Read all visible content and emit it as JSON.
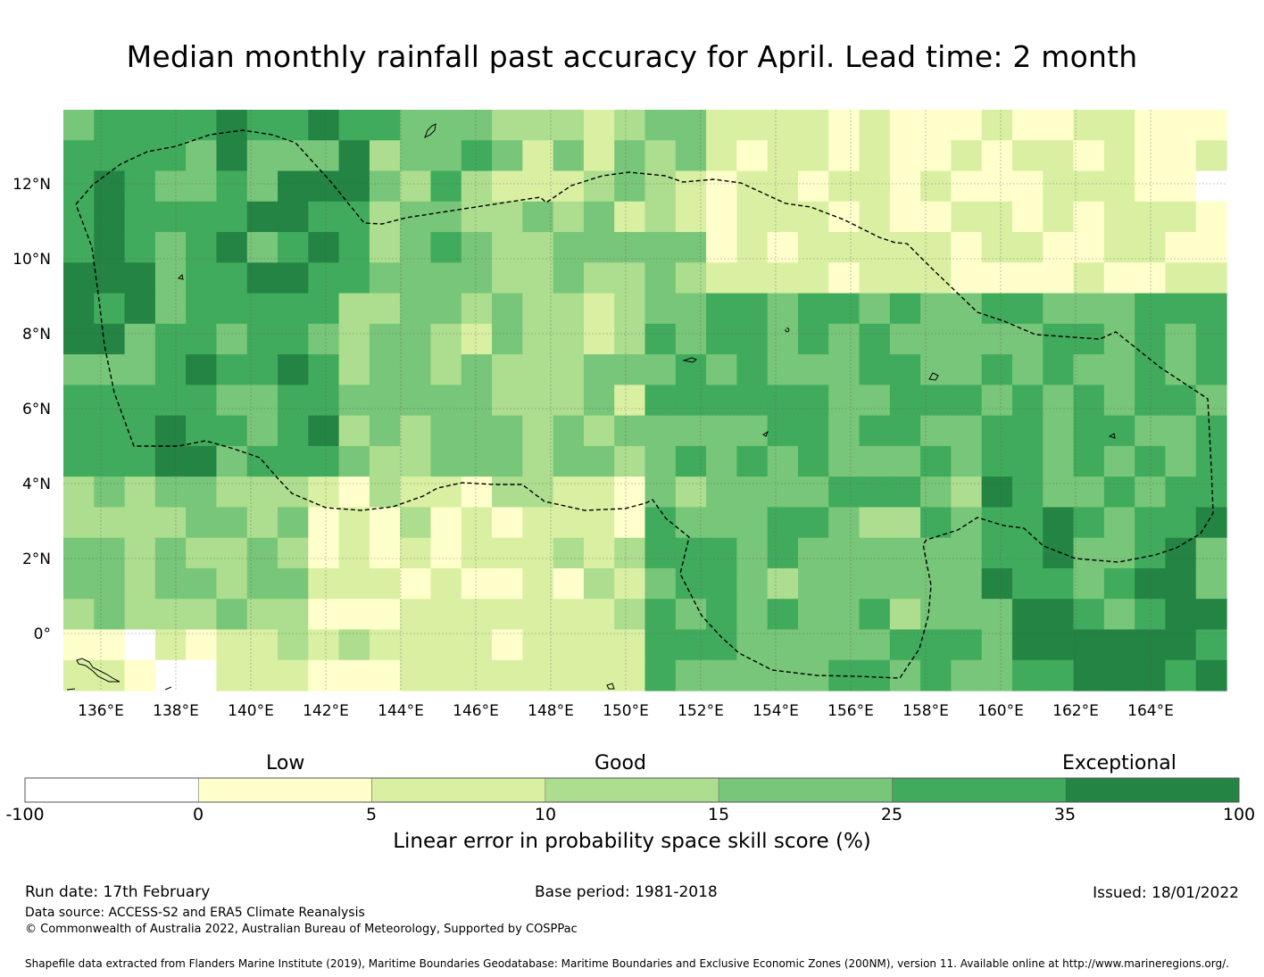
{
  "title": "Median monthly rainfall past accuracy for April. Lead time: 2 month",
  "map": {
    "lon_ticks": [
      "136°E",
      "138°E",
      "140°E",
      "142°E",
      "144°E",
      "146°E",
      "148°E",
      "150°E",
      "152°E",
      "154°E",
      "156°E",
      "158°E",
      "160°E",
      "162°E",
      "164°E"
    ],
    "lat_ticks": [
      "12°N",
      "10°N",
      "8°N",
      "6°N",
      "4°N",
      "2°N",
      "0°"
    ],
    "lon_range": [
      135.0,
      166.0
    ],
    "lat_range": [
      -1.5,
      14.0
    ],
    "grid": true,
    "boundary_style": "dashed",
    "features": [
      "EEZ boundary",
      "island coastlines"
    ]
  },
  "colorbar": {
    "category_labels": [
      "Low",
      "Good",
      "Exceptional"
    ],
    "boundaries": [
      "-100",
      "0",
      "5",
      "10",
      "15",
      "25",
      "35",
      "100"
    ],
    "colors": [
      "#ffffff",
      "#ffffcc",
      "#d9f0a3",
      "#addd8e",
      "#78c679",
      "#41ab5d",
      "#238443"
    ],
    "title": "Linear error in probability space skill score (%)"
  },
  "footer": {
    "run_date": "Run date: 17th February",
    "base_period": "Base period: 1981-2018",
    "issued": "Issued: 18/01/2022",
    "data_source": "Data source: ACCESS-S2 and ERA5 Climate Reanalysis",
    "copyright": "© Commonwealth of Australia 2022, Australian Bureau of Meteorology, Supported by COSPPac",
    "shapefile": "Shapefile data extracted from Flanders Marine Institute (2019), Maritime Boundaries Geodatabase: Maritime Boundaries and Exclusive Economic Zones (200NM), version 11. Available online at http://www.marineregions.org/."
  }
}
